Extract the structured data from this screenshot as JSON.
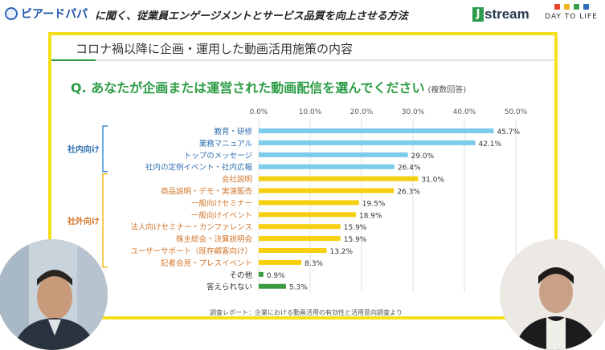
{
  "header": {
    "brand": "ビアードパパ",
    "headline": "に聞く、従業員エンゲージメントとサービス品質を向上させる方法",
    "jstream_j": "J",
    "jstream_rest": "stream",
    "day_to_life": "DAY TO LIFE",
    "dtl_colors": [
      "#e8432e",
      "#f2b21b",
      "#3aa04f",
      "#2f6fc2"
    ]
  },
  "slide": {
    "subtitle": "コロナ禍以降に企画・運用した動画活用施策の内容",
    "question": "Q. あなたが企画または運営された動画配信を選んでください",
    "question_note": "(複数回答)",
    "footnote": "調査レポート：企業における動画活用の有効性と活用意向調査より",
    "group_internal": "社内向け",
    "group_external": "社外向け"
  },
  "colors": {
    "internal": "#7ccbea",
    "external": "#f6cf0f",
    "other": "#3a9a42",
    "internal_text": "#2f6fb0",
    "external_text": "#d3752a",
    "other_text": "#333333",
    "bracket_internal": "#3a90d8",
    "bracket_external": "#f2b818"
  },
  "chart_data": {
    "type": "bar",
    "orientation": "horizontal",
    "xlim": [
      0,
      50
    ],
    "ticks": [
      "0.0%",
      "10.0%",
      "20.0%",
      "30.0%",
      "40.0%",
      "50.0%"
    ],
    "tick_values": [
      0,
      10,
      20,
      30,
      40,
      50
    ],
    "grid": true,
    "categories": [
      "教育・研修",
      "業務マニュアル",
      "トップのメッセージ",
      "社内の定例イベント・社内広報",
      "会社説明",
      "商品説明・デモ・実演販売",
      "一般向けセミナー",
      "一般向けイベント",
      "法人向けセミナー・カンファレンス",
      "株主総会・決算説明会",
      "ユーザーサポート（既存顧客向け）",
      "記者会見・プレスイベント",
      "その他",
      "答えられない"
    ],
    "values": [
      45.7,
      42.1,
      29.0,
      26.4,
      31.0,
      26.3,
      19.5,
      18.9,
      15.9,
      15.9,
      13.2,
      8.3,
      0.9,
      5.3
    ],
    "labels": [
      "45.7%",
      "42.1%",
      "29.0%",
      "26.4%",
      "31.0%",
      "26.3%",
      "19.5%",
      "18.9%",
      "15.9%",
      "15.9%",
      "13.2%",
      "8.3%",
      "0.9%",
      "5.3%"
    ],
    "groups": [
      "internal",
      "internal",
      "internal",
      "internal",
      "external",
      "external",
      "external",
      "external",
      "external",
      "external",
      "external",
      "external",
      "other",
      "other"
    ]
  }
}
